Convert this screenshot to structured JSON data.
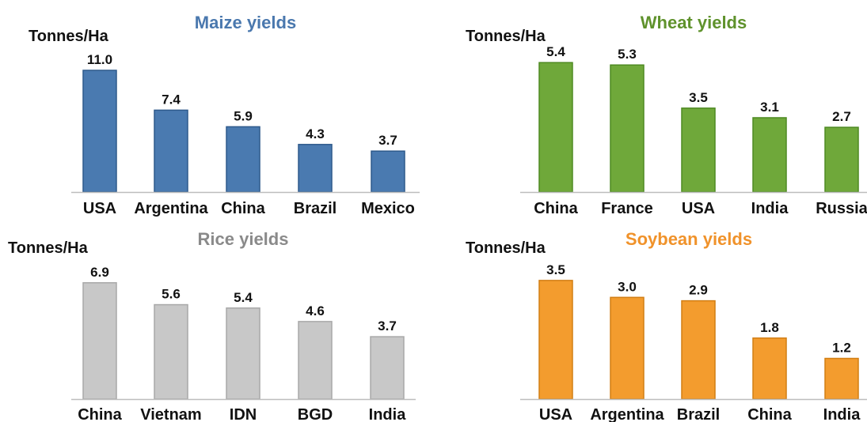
{
  "chart_data": [
    {
      "type": "bar",
      "title": "Maize yields",
      "ylabel": "Tonnes/Ha",
      "categories": [
        "USA",
        "Argentina",
        "China",
        "Brazil",
        "Mexico"
      ],
      "values": [
        11.0,
        7.4,
        5.9,
        4.3,
        3.7
      ],
      "value_labels": [
        "11.0",
        "7.4",
        "5.9",
        "4.3",
        "3.7"
      ],
      "ylim": [
        0,
        12
      ],
      "grid": false,
      "colors": {
        "bar": "#4a7ab0",
        "edge": "#2e5a8c",
        "title": "#4a78ae"
      }
    },
    {
      "type": "bar",
      "title": "Wheat yields",
      "ylabel": "Tonnes/Ha",
      "categories": [
        "China",
        "France",
        "USA",
        "India",
        "Russia"
      ],
      "values": [
        5.4,
        5.3,
        3.5,
        3.1,
        2.7
      ],
      "value_labels": [
        "5.4",
        "5.3",
        "3.5",
        "3.1",
        "2.7"
      ],
      "ylim": [
        0,
        6
      ],
      "grid": false,
      "colors": {
        "bar": "#6fa83a",
        "edge": "#4e8a22",
        "title": "#5f922c"
      }
    },
    {
      "type": "bar",
      "title": "Rice yields",
      "ylabel": "Tonnes/Ha",
      "categories": [
        "China",
        "Vietnam",
        "IDN",
        "BGD",
        "India"
      ],
      "values": [
        6.9,
        5.6,
        5.4,
        4.6,
        3.7
      ],
      "value_labels": [
        "6.9",
        "5.6",
        "5.4",
        "4.6",
        "3.7"
      ],
      "ylim": [
        0,
        7.5
      ],
      "grid": false,
      "colors": {
        "bar": "#c8c8c8",
        "edge": "#a8a8a8",
        "title": "#8a8a8a"
      }
    },
    {
      "type": "bar",
      "title": "Soybean yields",
      "ylabel": "Tonnes/Ha",
      "categories": [
        "USA",
        "Argentina",
        "Brazil",
        "China",
        "India"
      ],
      "values": [
        3.5,
        3.0,
        2.9,
        1.8,
        1.2
      ],
      "value_labels": [
        "3.5",
        "3.0",
        "2.9",
        "1.8",
        "1.2"
      ],
      "ylim": [
        0,
        3.8
      ],
      "grid": false,
      "colors": {
        "bar": "#f39c2e",
        "edge": "#d27e14",
        "title": "#f0922a"
      }
    }
  ]
}
